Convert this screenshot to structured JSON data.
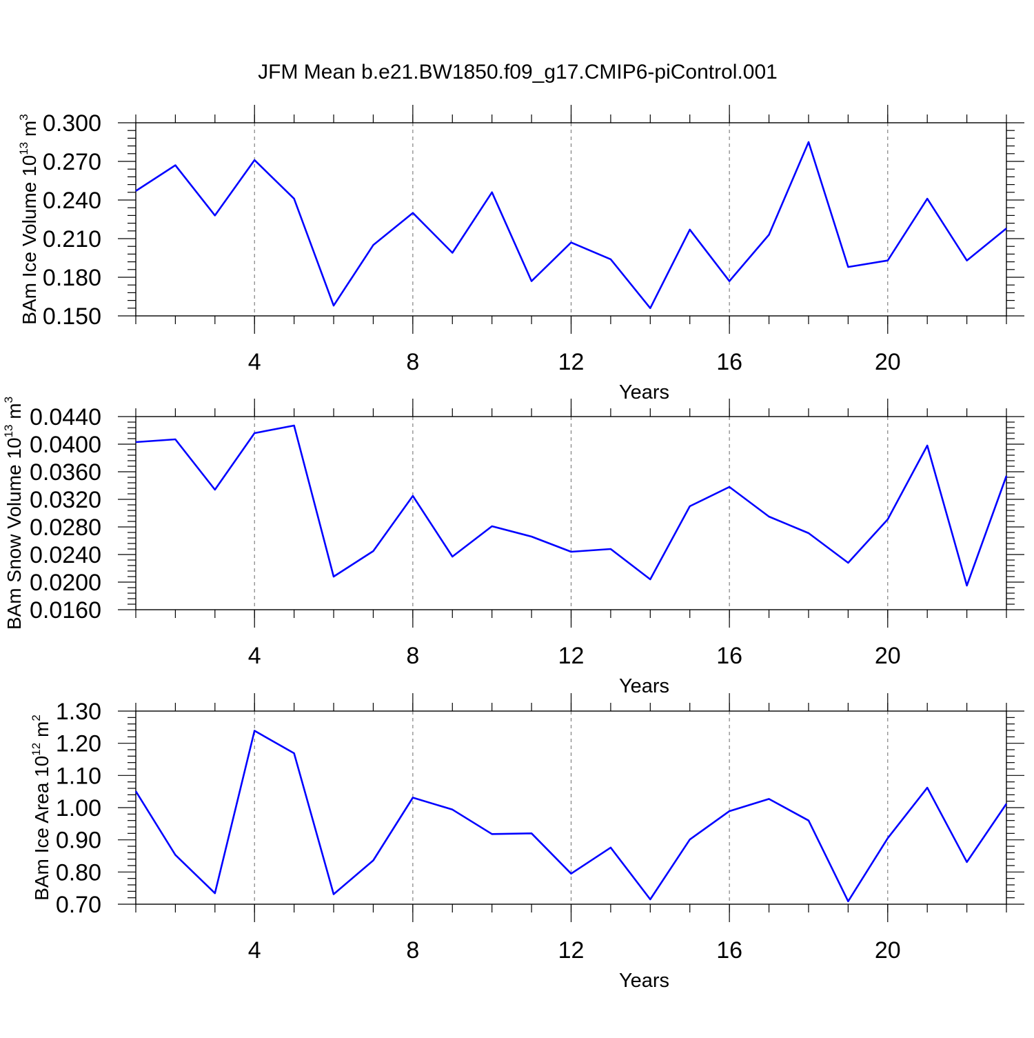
{
  "title": "JFM Mean b.e21.BW1850.f09_g17.CMIP6-piControl.001",
  "colors": {
    "line": "#0000ff",
    "axis": "#000000",
    "grid": "#808080"
  },
  "x_tick_labels": [
    "4",
    "8",
    "12",
    "16",
    "20"
  ],
  "chart_data": [
    {
      "type": "line",
      "xlabel": "Years",
      "ylabel": {
        "text": "BAm Ice Volume 10",
        "exponent": "13",
        "unit": " m",
        "unit_exponent": "3"
      },
      "xlim": [
        1,
        23
      ],
      "ylim": [
        0.15,
        0.3
      ],
      "y_tick_labels": [
        "0.150",
        "0.180",
        "0.210",
        "0.240",
        "0.270",
        "0.300"
      ],
      "grid": "vertical dashed at major x ticks",
      "x": [
        1,
        2,
        3,
        4,
        5,
        6,
        7,
        8,
        9,
        10,
        11,
        12,
        13,
        14,
        15,
        16,
        17,
        18,
        19,
        20,
        21,
        22,
        23
      ],
      "values": [
        0.247,
        0.267,
        0.228,
        0.271,
        0.241,
        0.158,
        0.205,
        0.23,
        0.199,
        0.246,
        0.177,
        0.207,
        0.194,
        0.156,
        0.217,
        0.177,
        0.213,
        0.285,
        0.188,
        0.193,
        0.241,
        0.193,
        0.218
      ]
    },
    {
      "type": "line",
      "xlabel": "Years",
      "ylabel": {
        "text": "BAm Snow Volume 10",
        "exponent": "13",
        "unit": " m",
        "unit_exponent": "3"
      },
      "xlim": [
        1,
        23
      ],
      "ylim": [
        0.016,
        0.044
      ],
      "y_tick_labels": [
        "0.0160",
        "0.0200",
        "0.0240",
        "0.0280",
        "0.0320",
        "0.0360",
        "0.0400",
        "0.0440"
      ],
      "grid": "vertical dashed at major x ticks",
      "x": [
        1,
        2,
        3,
        4,
        5,
        6,
        7,
        8,
        9,
        10,
        11,
        12,
        13,
        14,
        15,
        16,
        17,
        18,
        19,
        20,
        21,
        22,
        23
      ],
      "values": [
        0.0403,
        0.0407,
        0.0334,
        0.0416,
        0.0427,
        0.0208,
        0.0245,
        0.0325,
        0.0237,
        0.0281,
        0.0266,
        0.0244,
        0.0248,
        0.0204,
        0.031,
        0.0338,
        0.0295,
        0.0271,
        0.0228,
        0.0291,
        0.0398,
        0.0195,
        0.0354
      ]
    },
    {
      "type": "line",
      "xlabel": "Years",
      "ylabel": {
        "text": "BAm Ice Area 10",
        "exponent": "12",
        "unit": " m",
        "unit_exponent": "2"
      },
      "xlim": [
        1,
        23
      ],
      "ylim": [
        0.7,
        1.3
      ],
      "y_tick_labels": [
        "0.70",
        "0.80",
        "0.90",
        "1.00",
        "1.10",
        "1.20",
        "1.30"
      ],
      "grid": "vertical dashed at major x ticks",
      "x": [
        1,
        2,
        3,
        4,
        5,
        6,
        7,
        8,
        9,
        10,
        11,
        12,
        13,
        14,
        15,
        16,
        17,
        18,
        19,
        20,
        21,
        22,
        23
      ],
      "values": [
        1.051,
        0.853,
        0.734,
        1.239,
        1.169,
        0.731,
        0.836,
        1.031,
        0.994,
        0.918,
        0.92,
        0.795,
        0.876,
        0.715,
        0.901,
        0.989,
        1.027,
        0.96,
        0.709,
        0.905,
        1.062,
        0.831,
        1.012
      ]
    }
  ]
}
